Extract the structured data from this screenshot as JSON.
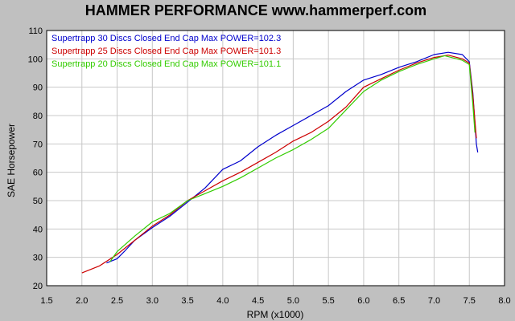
{
  "chart_data": {
    "type": "line",
    "title": "HAMMER PERFORMANCE www.hammerperf.com",
    "xlabel": "RPM (x1000)",
    "ylabel": "SAE Horsepower",
    "xlim": [
      1.5,
      8.0
    ],
    "ylim": [
      20,
      110
    ],
    "x_ticks": [
      "1.5",
      "2.0",
      "2.5",
      "3.0",
      "3.5",
      "4.0",
      "4.5",
      "5.0",
      "5.5",
      "6.0",
      "6.5",
      "7.0",
      "7.5",
      "8.0"
    ],
    "y_ticks": [
      "20",
      "30",
      "40",
      "50",
      "60",
      "70",
      "80",
      "90",
      "100",
      "110"
    ],
    "grid": true,
    "legend_position": "top-left",
    "series": [
      {
        "name": "Supertrapp 30 Discs Closed End Cap  Max POWER=102.3",
        "color": "#0000cc",
        "points": [
          [
            2.35,
            28
          ],
          [
            2.5,
            29.5
          ],
          [
            2.6,
            32
          ],
          [
            2.75,
            36
          ],
          [
            3.0,
            40.5
          ],
          [
            3.25,
            44.5
          ],
          [
            3.5,
            49.5
          ],
          [
            3.75,
            54.5
          ],
          [
            4.0,
            61
          ],
          [
            4.25,
            64
          ],
          [
            4.5,
            69
          ],
          [
            4.75,
            73
          ],
          [
            5.0,
            76.5
          ],
          [
            5.25,
            80
          ],
          [
            5.5,
            83.5
          ],
          [
            5.75,
            88.5
          ],
          [
            6.0,
            92.5
          ],
          [
            6.25,
            94.5
          ],
          [
            6.5,
            97
          ],
          [
            6.75,
            99
          ],
          [
            7.0,
            101.5
          ],
          [
            7.2,
            102.3
          ],
          [
            7.4,
            101.5
          ],
          [
            7.5,
            99
          ],
          [
            7.55,
            88
          ],
          [
            7.6,
            70
          ],
          [
            7.62,
            67
          ]
        ]
      },
      {
        "name": "Supertrapp 25 Discs Closed End Cap  Max POWER=101.3",
        "color": "#cc0000",
        "points": [
          [
            2.0,
            24.5
          ],
          [
            2.25,
            27
          ],
          [
            2.5,
            31
          ],
          [
            2.75,
            36
          ],
          [
            3.0,
            41
          ],
          [
            3.25,
            45
          ],
          [
            3.5,
            50
          ],
          [
            3.75,
            53.5
          ],
          [
            4.0,
            57
          ],
          [
            4.25,
            60
          ],
          [
            4.5,
            63.5
          ],
          [
            4.75,
            67
          ],
          [
            5.0,
            71
          ],
          [
            5.25,
            74
          ],
          [
            5.5,
            78
          ],
          [
            5.75,
            83
          ],
          [
            6.0,
            90
          ],
          [
            6.25,
            93
          ],
          [
            6.5,
            96
          ],
          [
            6.75,
            98.5
          ],
          [
            7.0,
            100.5
          ],
          [
            7.2,
            101.3
          ],
          [
            7.4,
            100
          ],
          [
            7.5,
            98.5
          ],
          [
            7.55,
            87
          ],
          [
            7.6,
            72
          ]
        ]
      },
      {
        "name": "Supertrapp 20 Discs Closed End Cap  Max POWER=101.1",
        "color": "#33cc00",
        "points": [
          [
            2.4,
            28.5
          ],
          [
            2.5,
            32
          ],
          [
            2.75,
            37.5
          ],
          [
            3.0,
            42.5
          ],
          [
            3.25,
            45.5
          ],
          [
            3.5,
            50
          ],
          [
            3.75,
            52.5
          ],
          [
            4.0,
            55
          ],
          [
            4.25,
            58
          ],
          [
            4.5,
            61.5
          ],
          [
            4.75,
            65
          ],
          [
            5.0,
            68
          ],
          [
            5.25,
            71.5
          ],
          [
            5.5,
            75.5
          ],
          [
            5.75,
            82
          ],
          [
            6.0,
            88.5
          ],
          [
            6.25,
            92.5
          ],
          [
            6.5,
            95.5
          ],
          [
            6.75,
            98
          ],
          [
            7.0,
            100
          ],
          [
            7.15,
            101.1
          ],
          [
            7.4,
            99.5
          ],
          [
            7.5,
            98
          ],
          [
            7.55,
            84
          ],
          [
            7.58,
            74
          ]
        ]
      }
    ]
  }
}
